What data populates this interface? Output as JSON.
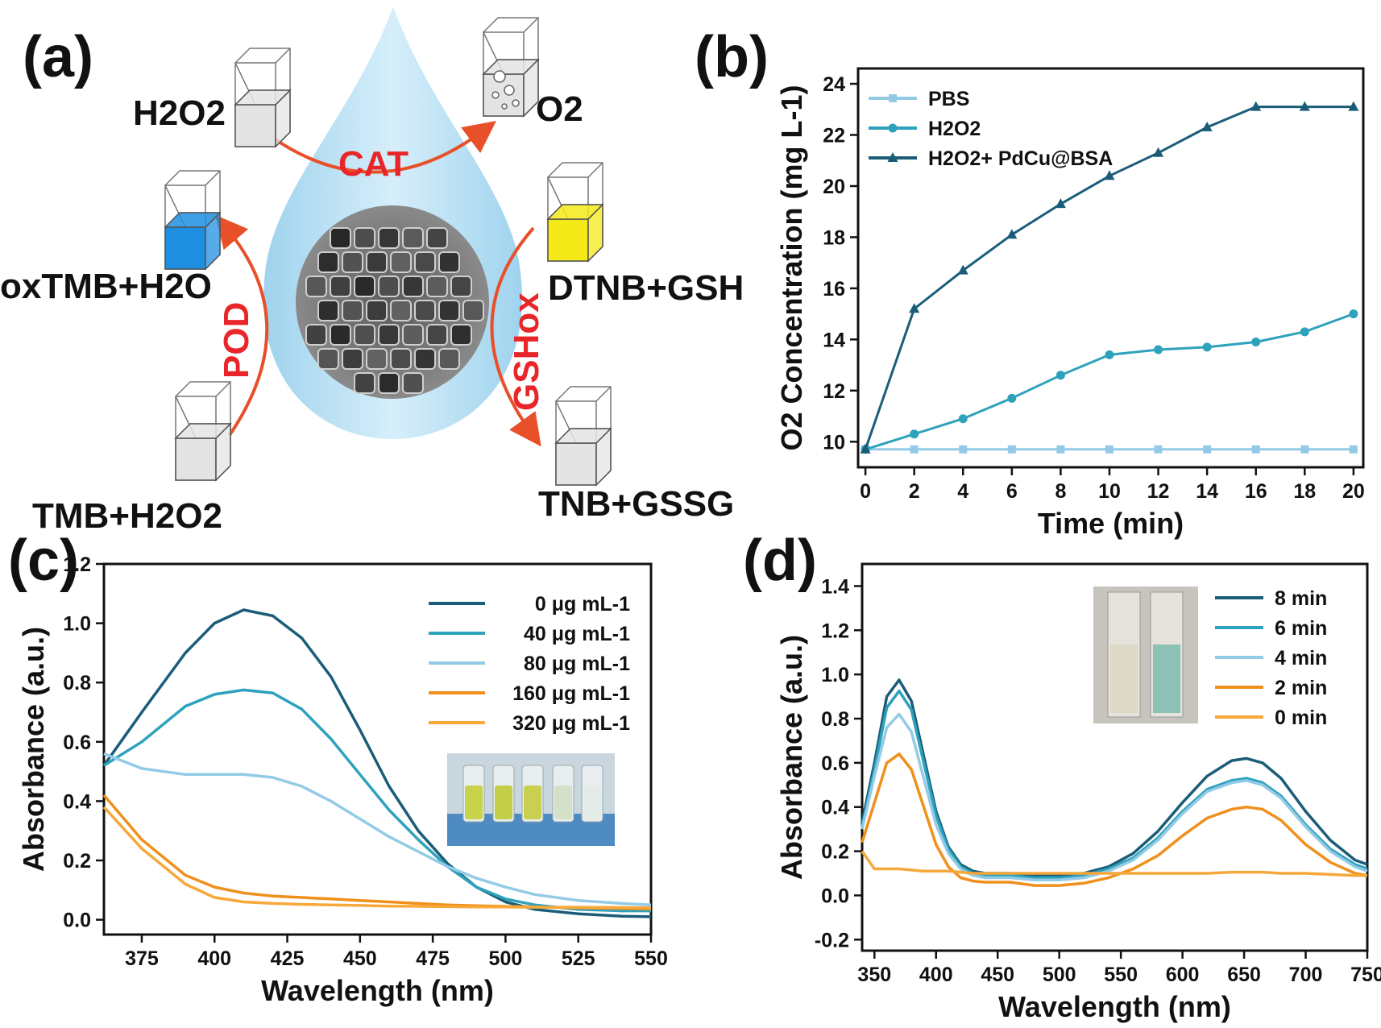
{
  "panels": {
    "a": "(a)",
    "b": "(b)",
    "c": "(c)",
    "d": "(d)"
  },
  "colors": {
    "dark": "#1b5d79",
    "mid": "#2ea2bd",
    "light": "#93cbe6",
    "orange": "#f0901c",
    "orange2": "#f6a83a",
    "red": "#e8262a"
  },
  "schematic": {
    "h2o2_label": "H2O2",
    "o2_label": "O2",
    "cat_label": "CAT",
    "pod_label": "POD",
    "gshox_label": "GSHox",
    "oxtmb_label": "oxTMB+H2O",
    "tmb_label": "TMB+H2O2",
    "dtnb_label": "DTNB+GSH",
    "tnb_label": "TNB+GSSG"
  },
  "chart_data": [
    {
      "id": "b",
      "type": "line",
      "xlabel": "Time (min)",
      "ylabel": "O2 Concentration (mg L-1)",
      "xlim": [
        -0.3,
        20.4
      ],
      "ylim": [
        9.0,
        24.6
      ],
      "xticks": [
        0,
        2,
        4,
        6,
        8,
        10,
        12,
        14,
        16,
        18,
        20
      ],
      "yticks": [
        10,
        12,
        14,
        16,
        18,
        20,
        22,
        24
      ],
      "x": [
        0,
        2,
        4,
        6,
        8,
        10,
        12,
        14,
        16,
        18,
        20
      ],
      "legend": "top-left",
      "series": [
        {
          "name": "PBS",
          "marker": "square",
          "color": "#93cbe6",
          "values": [
            9.7,
            9.7,
            9.7,
            9.7,
            9.7,
            9.7,
            9.7,
            9.7,
            9.7,
            9.7,
            9.7
          ]
        },
        {
          "name": "H2O2",
          "marker": "circle",
          "color": "#2ea2bd",
          "values": [
            9.7,
            10.3,
            10.9,
            11.7,
            12.6,
            13.4,
            13.6,
            13.7,
            13.9,
            14.3,
            15.0
          ]
        },
        {
          "name": "H2O2+ PdCu@BSA",
          "marker": "triangle",
          "color": "#1b5d79",
          "values": [
            9.7,
            15.2,
            16.7,
            18.1,
            19.3,
            20.4,
            21.3,
            22.3,
            23.1,
            23.1,
            23.1
          ]
        }
      ]
    },
    {
      "id": "c",
      "type": "line",
      "xlabel": "Wavelength (nm)",
      "ylabel": "Absorbance (a.u.)",
      "xlim": [
        362,
        550
      ],
      "ylim": [
        -0.05,
        1.2
      ],
      "xticks": [
        375,
        400,
        425,
        450,
        475,
        500,
        525,
        550
      ],
      "yticks": [
        0.0,
        0.2,
        0.4,
        0.6,
        0.8,
        1.0,
        1.2
      ],
      "yticklabels": [
        "0.0",
        "0.2",
        "0.4",
        "0.6",
        "0.8",
        "1.0",
        "1.2"
      ],
      "legend": "top-right",
      "x": [
        362,
        375,
        390,
        400,
        410,
        420,
        430,
        440,
        450,
        460,
        470,
        480,
        490,
        500,
        510,
        525,
        540,
        550
      ],
      "series": [
        {
          "name": "0 μg mL-1",
          "color": "#1b5d79",
          "values": [
            0.52,
            0.7,
            0.9,
            1.0,
            1.045,
            1.025,
            0.95,
            0.82,
            0.64,
            0.45,
            0.3,
            0.19,
            0.11,
            0.06,
            0.035,
            0.02,
            0.012,
            0.01
          ]
        },
        {
          "name": "40 μg mL-1",
          "color": "#2ea2bd",
          "values": [
            0.52,
            0.6,
            0.72,
            0.76,
            0.775,
            0.765,
            0.71,
            0.61,
            0.49,
            0.37,
            0.27,
            0.18,
            0.11,
            0.07,
            0.05,
            0.035,
            0.03,
            0.03
          ]
        },
        {
          "name": "80 μg mL-1",
          "color": "#93cbe6",
          "values": [
            0.56,
            0.51,
            0.49,
            0.49,
            0.49,
            0.48,
            0.45,
            0.4,
            0.34,
            0.28,
            0.23,
            0.18,
            0.14,
            0.11,
            0.085,
            0.065,
            0.055,
            0.05
          ]
        },
        {
          "name": "160 μg mL-1",
          "color": "#f0901c",
          "values": [
            0.42,
            0.27,
            0.15,
            0.11,
            0.09,
            0.08,
            0.075,
            0.07,
            0.065,
            0.06,
            0.055,
            0.05,
            0.047,
            0.045,
            0.043,
            0.04,
            0.038,
            0.036
          ]
        },
        {
          "name": "320 μg mL-1",
          "color": "#f6a83a",
          "values": [
            0.38,
            0.24,
            0.12,
            0.075,
            0.06,
            0.055,
            0.052,
            0.05,
            0.048,
            0.046,
            0.045,
            0.044,
            0.043,
            0.043,
            0.042,
            0.042,
            0.041,
            0.04
          ]
        }
      ]
    },
    {
      "id": "d",
      "type": "line",
      "xlabel": "Wavelength (nm)",
      "ylabel": "Absorbance (a.u.)",
      "xlim": [
        340,
        750
      ],
      "ylim": [
        -0.25,
        1.5
      ],
      "xticks": [
        350,
        400,
        450,
        500,
        550,
        600,
        650,
        700,
        750
      ],
      "yticks": [
        -0.2,
        0.0,
        0.2,
        0.4,
        0.6,
        0.8,
        1.0,
        1.2,
        1.4
      ],
      "yticklabels": [
        "-0.2",
        "0.0",
        "0.2",
        "0.4",
        "0.6",
        "0.8",
        "1.0",
        "1.2",
        "1.4"
      ],
      "legend": "top-right",
      "x": [
        340,
        350,
        360,
        370,
        380,
        390,
        400,
        410,
        420,
        430,
        440,
        460,
        480,
        500,
        520,
        540,
        560,
        580,
        600,
        620,
        640,
        652,
        665,
        680,
        700,
        720,
        740,
        750
      ],
      "series": [
        {
          "name": "8 min",
          "color": "#1b5d79",
          "values": [
            0.33,
            0.6,
            0.9,
            0.975,
            0.88,
            0.63,
            0.38,
            0.22,
            0.14,
            0.11,
            0.1,
            0.1,
            0.09,
            0.09,
            0.1,
            0.13,
            0.19,
            0.29,
            0.42,
            0.54,
            0.61,
            0.62,
            0.6,
            0.53,
            0.38,
            0.25,
            0.16,
            0.14
          ]
        },
        {
          "name": "6 min",
          "color": "#2ea2bd",
          "values": [
            0.31,
            0.57,
            0.85,
            0.925,
            0.84,
            0.6,
            0.36,
            0.21,
            0.13,
            0.1,
            0.09,
            0.09,
            0.08,
            0.08,
            0.09,
            0.12,
            0.17,
            0.26,
            0.38,
            0.48,
            0.52,
            0.53,
            0.51,
            0.45,
            0.32,
            0.21,
            0.14,
            0.12
          ]
        },
        {
          "name": "4 min",
          "color": "#93cbe6",
          "values": [
            0.3,
            0.54,
            0.76,
            0.82,
            0.74,
            0.53,
            0.32,
            0.19,
            0.12,
            0.09,
            0.08,
            0.08,
            0.07,
            0.07,
            0.08,
            0.11,
            0.16,
            0.25,
            0.37,
            0.47,
            0.51,
            0.52,
            0.5,
            0.44,
            0.31,
            0.2,
            0.13,
            0.11
          ]
        },
        {
          "name": "2 min",
          "color": "#f0901c",
          "values": [
            0.24,
            0.42,
            0.6,
            0.64,
            0.57,
            0.4,
            0.23,
            0.13,
            0.08,
            0.065,
            0.06,
            0.06,
            0.045,
            0.045,
            0.055,
            0.08,
            0.12,
            0.18,
            0.27,
            0.35,
            0.39,
            0.4,
            0.39,
            0.34,
            0.23,
            0.15,
            0.1,
            0.09
          ]
        },
        {
          "name": "0 min",
          "color": "#f6a83a",
          "values": [
            0.2,
            0.12,
            0.12,
            0.12,
            0.115,
            0.11,
            0.11,
            0.11,
            0.105,
            0.1,
            0.1,
            0.1,
            0.1,
            0.1,
            0.1,
            0.1,
            0.1,
            0.1,
            0.1,
            0.1,
            0.105,
            0.105,
            0.105,
            0.1,
            0.1,
            0.095,
            0.09,
            0.09
          ]
        }
      ]
    }
  ]
}
